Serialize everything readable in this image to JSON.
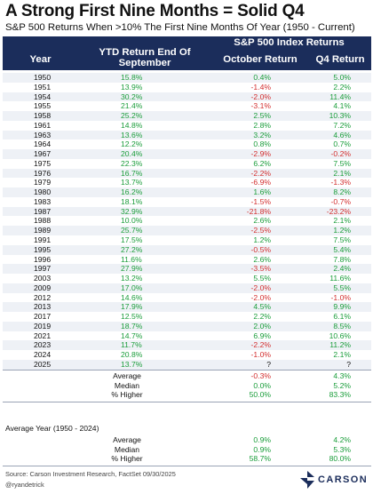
{
  "title": "A Strong First Nine Months = Solid Q4",
  "subtitle": "S&P 500 Returns When >10% The First Nine Months Of Year (1950 - Current)",
  "header": {
    "group": "S&P 500 Index Returns",
    "year": "Year",
    "ytd_line1": "YTD Return End Of",
    "ytd_line2": "September",
    "october": "October Return",
    "q4": "Q4 Return"
  },
  "rows": [
    {
      "year": "1950",
      "ytd": "15.8%",
      "oct": "0.4%",
      "q4": "5.0%"
    },
    {
      "year": "1951",
      "ytd": "13.9%",
      "oct": "-1.4%",
      "q4": "2.2%"
    },
    {
      "year": "1954",
      "ytd": "30.2%",
      "oct": "-2.0%",
      "q4": "11.4%"
    },
    {
      "year": "1955",
      "ytd": "21.4%",
      "oct": "-3.1%",
      "q4": "4.1%"
    },
    {
      "year": "1958",
      "ytd": "25.2%",
      "oct": "2.5%",
      "q4": "10.3%"
    },
    {
      "year": "1961",
      "ytd": "14.8%",
      "oct": "2.8%",
      "q4": "7.2%"
    },
    {
      "year": "1963",
      "ytd": "13.6%",
      "oct": "3.2%",
      "q4": "4.6%"
    },
    {
      "year": "1964",
      "ytd": "12.2%",
      "oct": "0.8%",
      "q4": "0.7%"
    },
    {
      "year": "1967",
      "ytd": "20.4%",
      "oct": "-2.9%",
      "q4": "-0.2%"
    },
    {
      "year": "1975",
      "ytd": "22.3%",
      "oct": "6.2%",
      "q4": "7.5%"
    },
    {
      "year": "1976",
      "ytd": "16.7%",
      "oct": "-2.2%",
      "q4": "2.1%"
    },
    {
      "year": "1979",
      "ytd": "13.7%",
      "oct": "-6.9%",
      "q4": "-1.3%"
    },
    {
      "year": "1980",
      "ytd": "16.2%",
      "oct": "1.6%",
      "q4": "8.2%"
    },
    {
      "year": "1983",
      "ytd": "18.1%",
      "oct": "-1.5%",
      "q4": "-0.7%"
    },
    {
      "year": "1987",
      "ytd": "32.9%",
      "oct": "-21.8%",
      "q4": "-23.2%"
    },
    {
      "year": "1988",
      "ytd": "10.0%",
      "oct": "2.6%",
      "q4": "2.1%"
    },
    {
      "year": "1989",
      "ytd": "25.7%",
      "oct": "-2.5%",
      "q4": "1.2%"
    },
    {
      "year": "1991",
      "ytd": "17.5%",
      "oct": "1.2%",
      "q4": "7.5%"
    },
    {
      "year": "1995",
      "ytd": "27.2%",
      "oct": "-0.5%",
      "q4": "5.4%"
    },
    {
      "year": "1996",
      "ytd": "11.6%",
      "oct": "2.6%",
      "q4": "7.8%"
    },
    {
      "year": "1997",
      "ytd": "27.9%",
      "oct": "-3.5%",
      "q4": "2.4%"
    },
    {
      "year": "2003",
      "ytd": "13.2%",
      "oct": "5.5%",
      "q4": "11.6%"
    },
    {
      "year": "2009",
      "ytd": "17.0%",
      "oct": "-2.0%",
      "q4": "5.5%"
    },
    {
      "year": "2012",
      "ytd": "14.6%",
      "oct": "-2.0%",
      "q4": "-1.0%"
    },
    {
      "year": "2013",
      "ytd": "17.9%",
      "oct": "4.5%",
      "q4": "9.9%"
    },
    {
      "year": "2017",
      "ytd": "12.5%",
      "oct": "2.2%",
      "q4": "6.1%"
    },
    {
      "year": "2019",
      "ytd": "18.7%",
      "oct": "2.0%",
      "q4": "8.5%"
    },
    {
      "year": "2021",
      "ytd": "14.7%",
      "oct": "6.9%",
      "q4": "10.6%"
    },
    {
      "year": "2023",
      "ytd": "11.7%",
      "oct": "-2.2%",
      "q4": "11.2%"
    },
    {
      "year": "2024",
      "ytd": "20.8%",
      "oct": "-1.0%",
      "q4": "2.1%"
    },
    {
      "year": "2025",
      "ytd": "13.7%",
      "oct": "?",
      "q4": "?"
    }
  ],
  "summary": [
    {
      "label": "Average",
      "oct": "-0.3%",
      "q4": "4.3%"
    },
    {
      "label": "Median",
      "oct": "0.0%",
      "q4": "5.2%"
    },
    {
      "label": "% Higher",
      "oct": "50.0%",
      "q4": "83.3%"
    }
  ],
  "avg_year": {
    "title": "Average Year (1950 - 2024)",
    "rows": [
      {
        "label": "Average",
        "ytd": "",
        "oct": "0.9%",
        "q4": "4.2%"
      },
      {
        "label": "Median",
        "ytd": "",
        "oct": "0.9%",
        "q4": "5.3%"
      },
      {
        "label": "% Higher",
        "ytd": "58.7%",
        "oct": "80.0%",
        "q4": ""
      }
    ]
  },
  "footer": {
    "source": "Source: Carson Investment Research, FactSet 09/30/2025",
    "handle": "@ryandetrick",
    "brand": "CARSON"
  },
  "colors": {
    "header_bg": "#1b2d5b",
    "positive": "#1a9d3a",
    "negative": "#d32f2f",
    "stripe": "#eef1f6"
  }
}
